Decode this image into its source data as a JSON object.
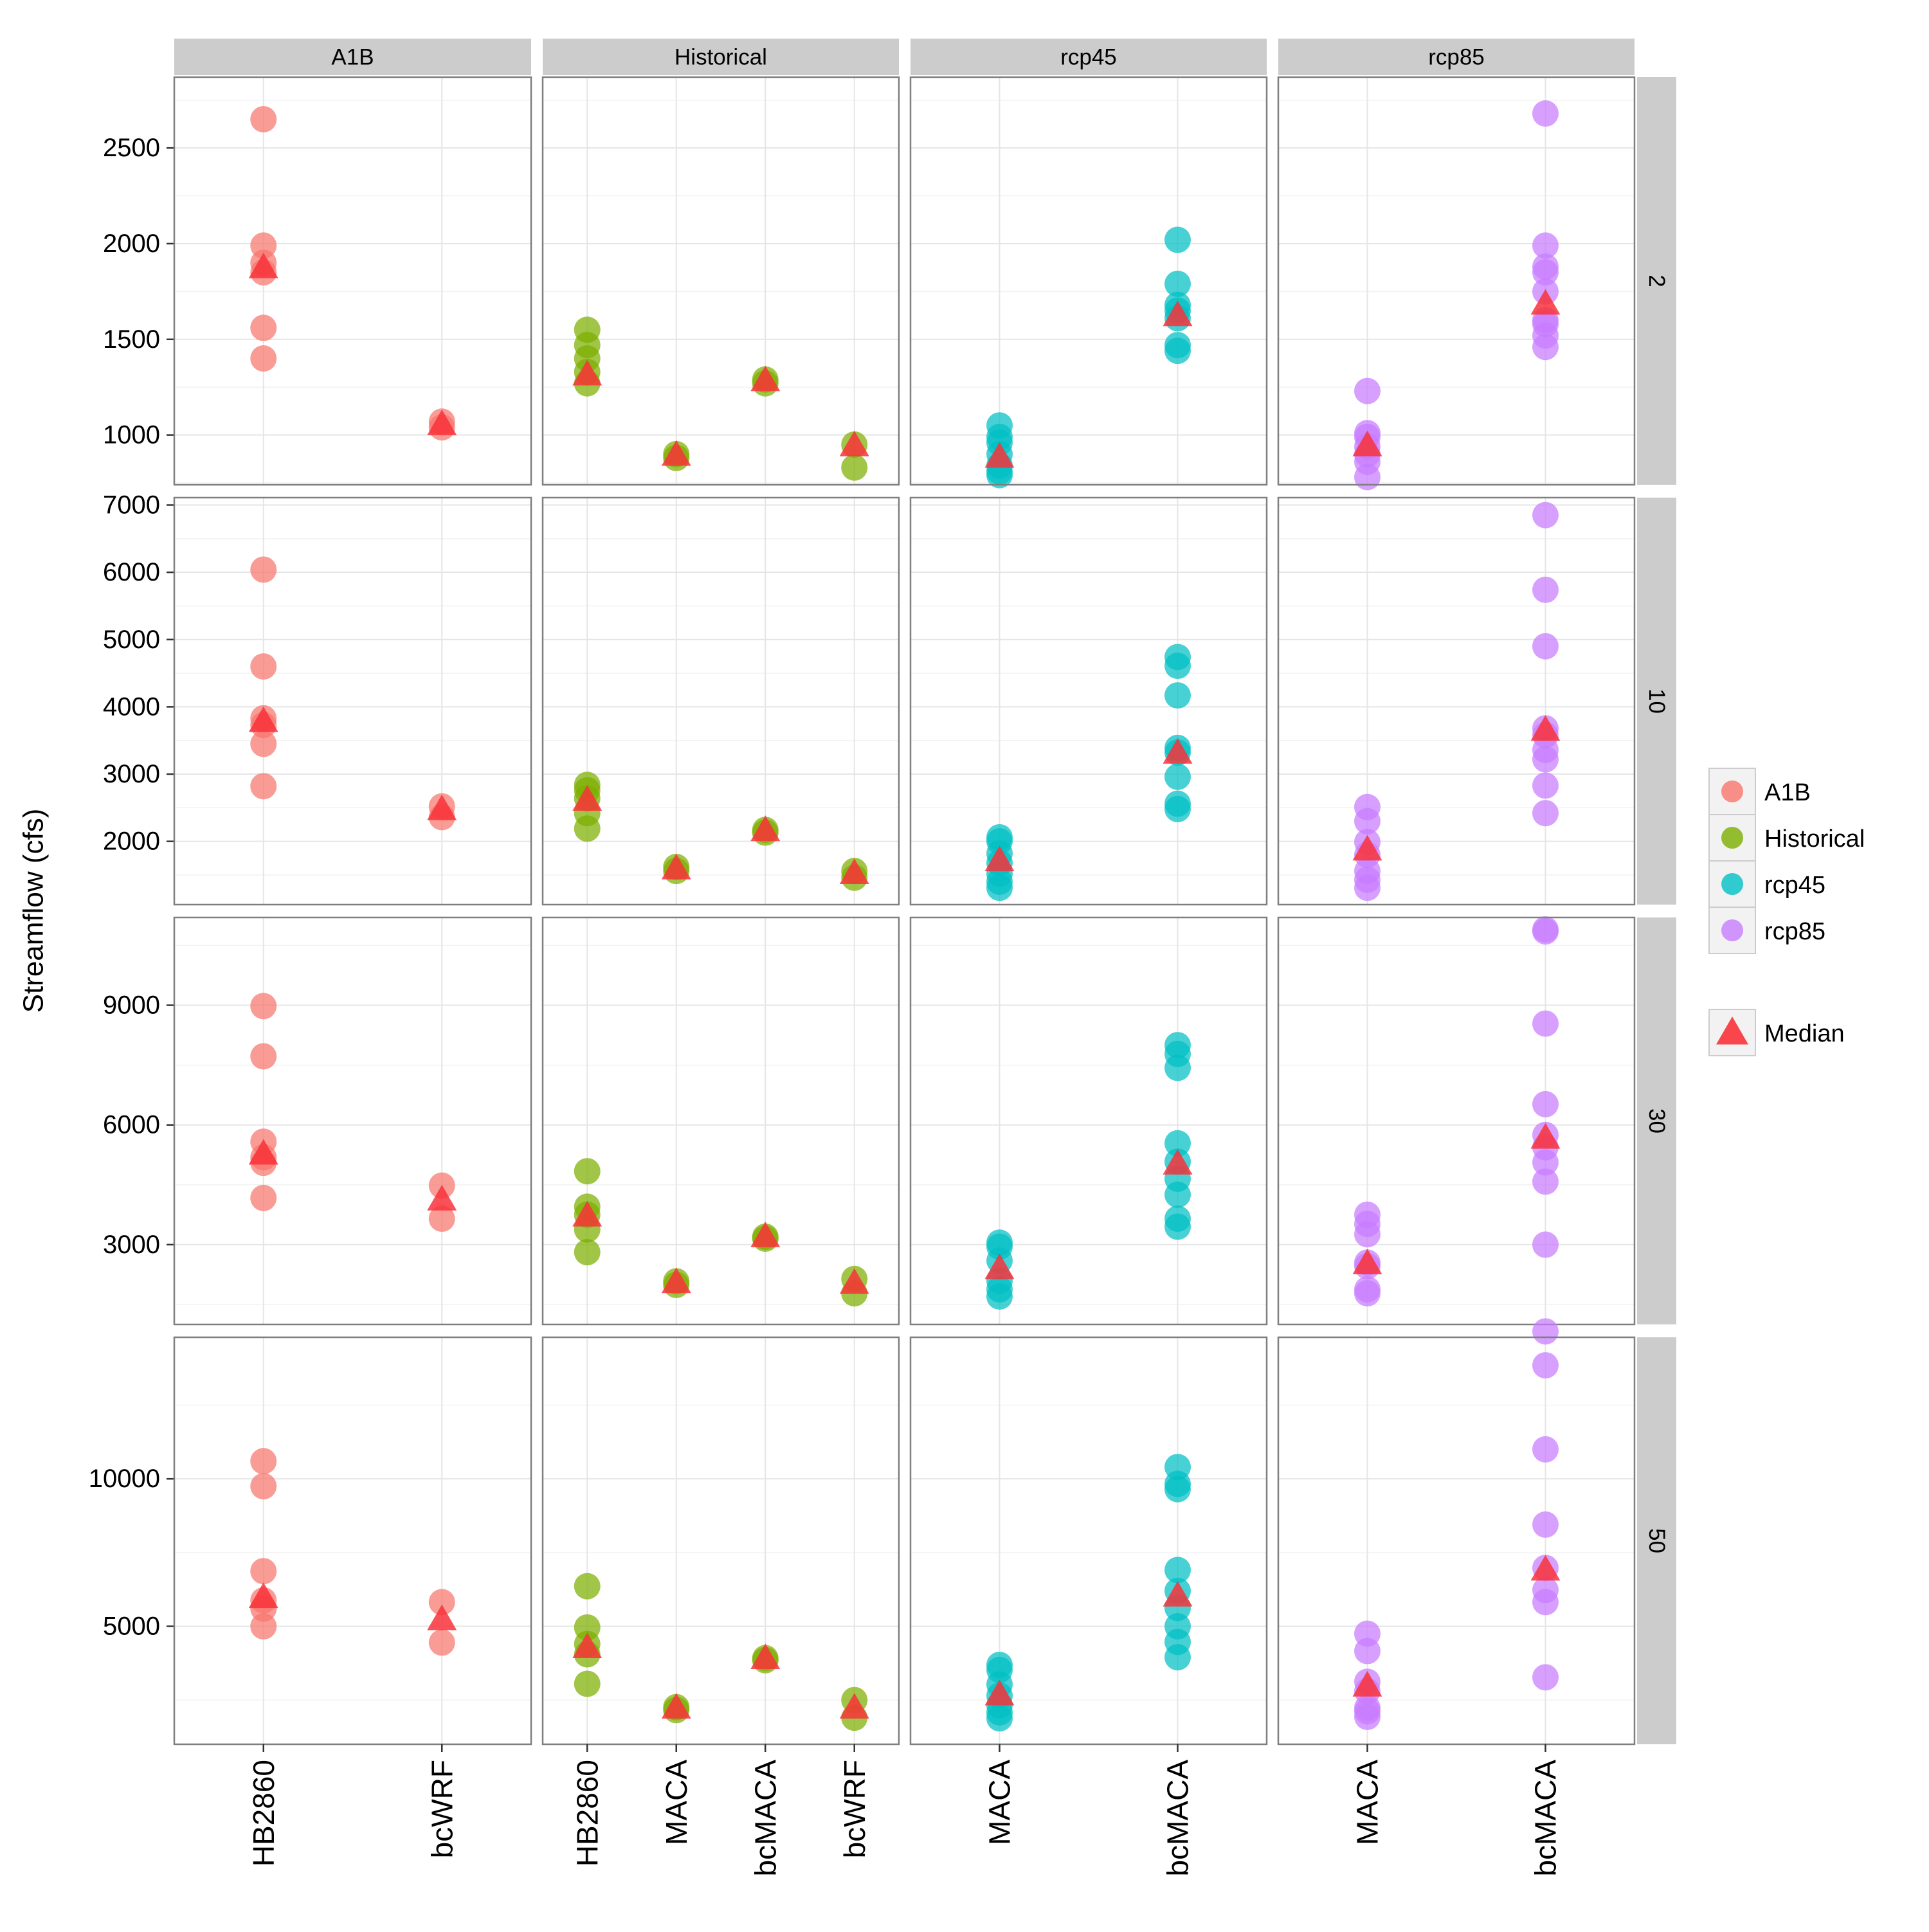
{
  "chart_data": {
    "type": "scatter",
    "ylabel": "Streamflow (cfs)",
    "xlabel": "",
    "grid": true,
    "legend_position": "right",
    "columns": [
      {
        "label": "A1B",
        "categories": [
          "HB2860",
          "bcWRF"
        ]
      },
      {
        "label": "Historical",
        "categories": [
          "HB2860",
          "MACA",
          "bcMACA",
          "bcWRF"
        ]
      },
      {
        "label": "rcp45",
        "categories": [
          "MACA",
          "bcMACA"
        ]
      },
      {
        "label": "rcp85",
        "categories": [
          "MACA",
          "bcMACA"
        ]
      }
    ],
    "rows": [
      {
        "label": "2",
        "ylim": [
          740,
          2870
        ],
        "yticks": [
          1000,
          1500,
          2000,
          2500
        ]
      },
      {
        "label": "10",
        "ylim": [
          1060,
          7110
        ],
        "yticks": [
          2000,
          3000,
          4000,
          5000,
          6000,
          7000
        ]
      },
      {
        "label": "30",
        "ylim": [
          1000,
          11200
        ],
        "yticks": [
          3000,
          6000,
          9000
        ]
      },
      {
        "label": "50",
        "ylim": [
          1000,
          14800
        ],
        "yticks": [
          5000,
          10000
        ]
      }
    ],
    "legend": {
      "series": [
        {
          "name": "A1B",
          "color": "#F8766D"
        },
        {
          "name": "Historical",
          "color": "#7CAE00"
        },
        {
          "name": "rcp45",
          "color": "#00BFC4"
        },
        {
          "name": "rcp85",
          "color": "#C77CFF"
        }
      ],
      "median": {
        "name": "Median",
        "color": "#F8333A"
      }
    },
    "panels": [
      {
        "row": "2",
        "column": "A1B",
        "points": {
          "HB2860": [
            2650,
            1990,
            1900,
            1850,
            1560,
            1400
          ],
          "bcWRF": [
            1070,
            1040
          ]
        },
        "median": {
          "HB2860": 1870,
          "bcWRF": 1050
        }
      },
      {
        "row": "2",
        "column": "Historical",
        "points": {
          "HB2860": [
            1550,
            1470,
            1400,
            1330,
            1270
          ],
          "MACA": [
            900,
            880
          ],
          "bcMACA": [
            1290,
            1270
          ],
          "bcWRF": [
            950,
            830
          ]
        },
        "median": {
          "HB2860": 1310,
          "MACA": 890,
          "bcMACA": 1280,
          "bcWRF": 940
        }
      },
      {
        "row": "2",
        "column": "rcp45",
        "points": {
          "MACA": [
            1050,
            990,
            960,
            900,
            840,
            810,
            790
          ],
          "bcMACA": [
            2020,
            1790,
            1680,
            1650,
            1610,
            1470,
            1440
          ]
        },
        "median": {
          "MACA": 880,
          "bcMACA": 1620
        }
      },
      {
        "row": "2",
        "column": "rcp85",
        "points": {
          "MACA": [
            1230,
            1010,
            990,
            940,
            900,
            860,
            780
          ],
          "bcMACA": [
            2680,
            1990,
            1880,
            1850,
            1750,
            1600,
            1580,
            1520,
            1460
          ]
        },
        "median": {
          "MACA": 940,
          "bcMACA": 1680
        }
      },
      {
        "row": "10",
        "column": "A1B",
        "points": {
          "HB2860": [
            6040,
            4600,
            3830,
            3730,
            3450,
            2820
          ],
          "bcWRF": [
            2520,
            2360
          ]
        },
        "median": {
          "HB2860": 3770,
          "bcWRF": 2460
        }
      },
      {
        "row": "10",
        "column": "Historical",
        "points": {
          "HB2860": [
            2840,
            2760,
            2640,
            2420,
            2190
          ],
          "MACA": [
            1620,
            1560
          ],
          "bcMACA": [
            2170,
            2130
          ],
          "bcWRF": [
            1560,
            1460
          ]
        },
        "median": {
          "HB2860": 2600,
          "MACA": 1580,
          "bcMACA": 2150,
          "bcWRF": 1510
        }
      },
      {
        "row": "10",
        "column": "rcp45",
        "points": {
          "MACA": [
            2060,
            2000,
            1820,
            1680,
            1520,
            1400,
            1310
          ],
          "bcMACA": [
            4740,
            4610,
            4170,
            3390,
            3320,
            2960,
            2560,
            2480
          ]
        },
        "median": {
          "MACA": 1700,
          "bcMACA": 3300
        }
      },
      {
        "row": "10",
        "column": "rcp85",
        "points": {
          "MACA": [
            2510,
            2300,
            1990,
            1800,
            1560,
            1430,
            1310
          ],
          "bcMACA": [
            6850,
            5740,
            4900,
            3680,
            3580,
            3360,
            3220,
            2830,
            2420
          ]
        },
        "median": {
          "MACA": 1860,
          "bcMACA": 3640
        }
      },
      {
        "row": "30",
        "column": "A1B",
        "points": {
          "HB2860": [
            8980,
            7720,
            5580,
            5190,
            5050,
            4170
          ],
          "bcWRF": [
            4480,
            3650
          ]
        },
        "median": {
          "HB2860": 5250,
          "bcWRF": 4100
        }
      },
      {
        "row": "30",
        "column": "Historical",
        "points": {
          "HB2860": [
            4840,
            3950,
            3750,
            3380,
            2810
          ],
          "MACA": [
            2080,
            1990
          ],
          "bcMACA": [
            3200,
            3150
          ],
          "bcWRF": [
            2140,
            1780
          ]
        },
        "median": {
          "HB2860": 3700,
          "MACA": 2030,
          "bcMACA": 3180,
          "bcWRF": 2010
        }
      },
      {
        "row": "30",
        "column": "rcp45",
        "points": {
          "MACA": [
            3050,
            2950,
            2600,
            2100,
            1880,
            1700
          ],
          "bcMACA": [
            8000,
            7780,
            7430,
            5540,
            5080,
            4650,
            4250,
            3650,
            3450
          ]
        },
        "median": {
          "MACA": 2380,
          "bcMACA": 5000
        }
      },
      {
        "row": "30",
        "column": "rcp85",
        "points": {
          "MACA": [
            3750,
            3520,
            3260,
            2550,
            2460,
            1880,
            1780
          ],
          "bcMACA": [
            10900,
            10850,
            8540,
            6520,
            5750,
            5440,
            5060,
            4580,
            3000
          ]
        },
        "median": {
          "MACA": 2500,
          "bcMACA": 5650
        }
      },
      {
        "row": "50",
        "column": "A1B",
        "points": {
          "HB2860": [
            10600,
            9750,
            6870,
            5880,
            5600,
            5000
          ],
          "bcWRF": [
            5820,
            4450
          ]
        },
        "median": {
          "HB2860": 5950,
          "bcWRF": 5200
        }
      },
      {
        "row": "50",
        "column": "Historical",
        "points": {
          "HB2860": [
            6360,
            4960,
            4400,
            4050,
            3050
          ],
          "MACA": [
            2260,
            2160
          ],
          "bcMACA": [
            3920,
            3850
          ],
          "bcWRF": [
            2500,
            1900
          ]
        },
        "median": {
          "HB2860": 4250,
          "MACA": 2200,
          "bcMACA": 3880,
          "bcWRF": 2200
        }
      },
      {
        "row": "50",
        "column": "rcp45",
        "points": {
          "MACA": [
            3690,
            3520,
            3030,
            2650,
            2320,
            2080,
            1880
          ],
          "bcMACA": [
            10400,
            9830,
            9650,
            6910,
            6200,
            5620,
            5000,
            4470,
            3950
          ]
        },
        "median": {
          "MACA": 2650,
          "bcMACA": 6000
        }
      },
      {
        "row": "50",
        "column": "rcp85",
        "points": {
          "MACA": [
            4750,
            4160,
            3120,
            2800,
            2240,
            2120,
            1930
          ],
          "bcMACA": [
            15000,
            13850,
            11000,
            8450,
            6980,
            6230,
            5820,
            3270
          ]
        },
        "median": {
          "MACA": 2950,
          "bcMACA": 6880
        }
      }
    ]
  }
}
